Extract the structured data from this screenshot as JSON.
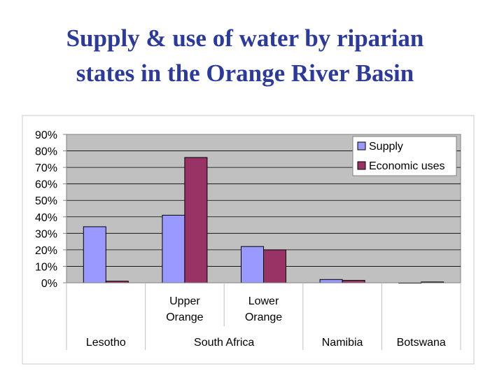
{
  "title": {
    "line1": "Supply & use of water by riparian",
    "line2": "states in the Orange River Basin"
  },
  "chart_data": {
    "type": "bar",
    "title": "Supply & use of water by riparian states in the Orange River Basin",
    "xlabel": "",
    "ylabel": "",
    "ylim": [
      0,
      90
    ],
    "yticks": [
      0,
      10,
      20,
      30,
      40,
      50,
      60,
      70,
      80,
      90
    ],
    "ytick_labels": [
      "0%",
      "10%",
      "20%",
      "30%",
      "40%",
      "50%",
      "60%",
      "70%",
      "80%",
      "90%"
    ],
    "grid": true,
    "legend_position": "top-right",
    "categories": [
      "Lesotho",
      "Upper Orange",
      "Lower Orange",
      "Namibia",
      "Botswana"
    ],
    "category_groups": [
      {
        "label": "Lesotho",
        "subcategories": [
          ""
        ]
      },
      {
        "label": "South Africa",
        "subcategories": [
          "Upper\nOrange",
          "Lower\nOrange"
        ]
      },
      {
        "label": "Namibia",
        "subcategories": [
          ""
        ]
      },
      {
        "label": "Botswana",
        "subcategories": [
          ""
        ]
      }
    ],
    "series": [
      {
        "name": "Supply",
        "color": "#9999ff",
        "values": [
          34,
          41,
          22,
          2,
          0
        ]
      },
      {
        "name": "Economic uses",
        "color": "#993366",
        "values": [
          1,
          76,
          20,
          1.5,
          0.5
        ]
      }
    ]
  }
}
